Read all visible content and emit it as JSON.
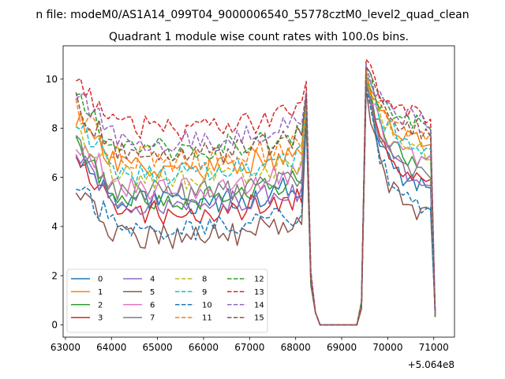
{
  "chart_data": {
    "type": "line",
    "suptitle": "n file: modeM0/AS1A14_099T04_9000006540_55778cztM0_level2_quad_clean",
    "title": "Quadrant 1 module wise count rates with 100.0s bins.",
    "xlabel": "",
    "ylabel": "",
    "x_offset_label": "+5.064e8",
    "xlim": [
      62950,
      71450
    ],
    "ylim": [
      -0.5,
      11.35
    ],
    "x_ticks": [
      63000,
      64000,
      65000,
      66000,
      67000,
      68000,
      69000,
      70000,
      71000
    ],
    "x_tick_labels": [
      "63000",
      "64000",
      "65000",
      "66000",
      "67000",
      "68000",
      "69000",
      "70000",
      "71000"
    ],
    "y_ticks": [
      0,
      2,
      4,
      6,
      8,
      10
    ],
    "y_tick_labels": [
      "0",
      "2",
      "4",
      "6",
      "8",
      "10"
    ],
    "grid": false,
    "legend_position": "lower-left",
    "legend_columns": 4,
    "x": [
      63230,
      63330,
      63430,
      63530,
      63630,
      63730,
      63830,
      63930,
      64030,
      64130,
      64230,
      64330,
      64430,
      64530,
      64630,
      64730,
      64830,
      64930,
      65030,
      65130,
      65230,
      65330,
      65430,
      65530,
      65630,
      65730,
      65830,
      65930,
      66030,
      66130,
      66230,
      66330,
      66430,
      66530,
      66630,
      66730,
      66830,
      66930,
      67030,
      67130,
      67230,
      67330,
      67430,
      67530,
      67630,
      67730,
      67830,
      67930,
      68030,
      68130,
      68230,
      68330,
      68430,
      68530,
      68630,
      68730,
      68830,
      68930,
      69030,
      69130,
      69230,
      69330,
      69430,
      69530,
      69630,
      69730,
      69830,
      69930,
      70030,
      70130,
      70230,
      70330,
      70430,
      70530,
      70630,
      70730,
      70830,
      70930,
      71030
    ],
    "series": [
      {
        "name": "0",
        "color": "#1f77b4",
        "dash": "solid",
        "base": 5.4,
        "peak1": 8.6,
        "peak2": 10.0,
        "tail": 5.5,
        "seed": 1
      },
      {
        "name": "1",
        "color": "#ff7f0e",
        "dash": "solid",
        "base": 6.8,
        "peak1": 9.0,
        "peak2": 10.2,
        "tail": 7.5,
        "seed": 2
      },
      {
        "name": "2",
        "color": "#2ca02c",
        "dash": "solid",
        "base": 5.6,
        "peak1": 8.8,
        "peak2": 10.1,
        "tail": 6.5,
        "seed": 3
      },
      {
        "name": "3",
        "color": "#d62728",
        "dash": "solid",
        "base": 5.0,
        "peak1": 8.5,
        "peak2": 9.8,
        "tail": 5.6,
        "seed": 4
      },
      {
        "name": "4",
        "color": "#9467bd",
        "dash": "solid",
        "base": 5.3,
        "peak1": 8.6,
        "peak2": 9.9,
        "tail": 5.8,
        "seed": 5
      },
      {
        "name": "5",
        "color": "#8c564b",
        "dash": "solid",
        "base": 4.0,
        "peak1": 8.4,
        "peak2": 9.6,
        "tail": 4.4,
        "seed": 6
      },
      {
        "name": "6",
        "color": "#e377c2",
        "dash": "solid",
        "base": 6.0,
        "peak1": 8.8,
        "peak2": 10.0,
        "tail": 6.6,
        "seed": 7
      },
      {
        "name": "7",
        "color": "#7f7f7f",
        "dash": "solid",
        "base": 5.8,
        "peak1": 8.7,
        "peak2": 10.0,
        "tail": 6.0,
        "seed": 8
      },
      {
        "name": "8",
        "color": "#bcbd22",
        "dash": "dashed",
        "base": 6.4,
        "peak1": 8.9,
        "peak2": 10.2,
        "tail": 7.0,
        "seed": 9
      },
      {
        "name": "9",
        "color": "#17becf",
        "dash": "dashed",
        "base": 6.6,
        "peak1": 9.0,
        "peak2": 10.3,
        "tail": 7.2,
        "seed": 10
      },
      {
        "name": "10",
        "color": "#1f77b4",
        "dash": "dashed",
        "base": 4.3,
        "peak1": 8.4,
        "peak2": 9.7,
        "tail": 4.6,
        "seed": 11
      },
      {
        "name": "11",
        "color": "#ff7f0e",
        "dash": "dashed",
        "base": 7.2,
        "peak1": 9.2,
        "peak2": 10.4,
        "tail": 7.6,
        "seed": 12
      },
      {
        "name": "12",
        "color": "#2ca02c",
        "dash": "dashed",
        "base": 7.6,
        "peak1": 9.3,
        "peak2": 10.5,
        "tail": 8.0,
        "seed": 13
      },
      {
        "name": "13",
        "color": "#d62728",
        "dash": "dashed",
        "base": 8.4,
        "peak1": 9.9,
        "peak2": 10.8,
        "tail": 8.4,
        "seed": 14
      },
      {
        "name": "14",
        "color": "#9467bd",
        "dash": "dashed",
        "base": 7.9,
        "peak1": 9.5,
        "peak2": 10.6,
        "tail": 8.2,
        "seed": 15
      },
      {
        "name": "15",
        "color": "#8c564b",
        "dash": "dashed",
        "base": 7.4,
        "peak1": 9.4,
        "peak2": 10.5,
        "tail": 7.8,
        "seed": 16
      }
    ]
  }
}
